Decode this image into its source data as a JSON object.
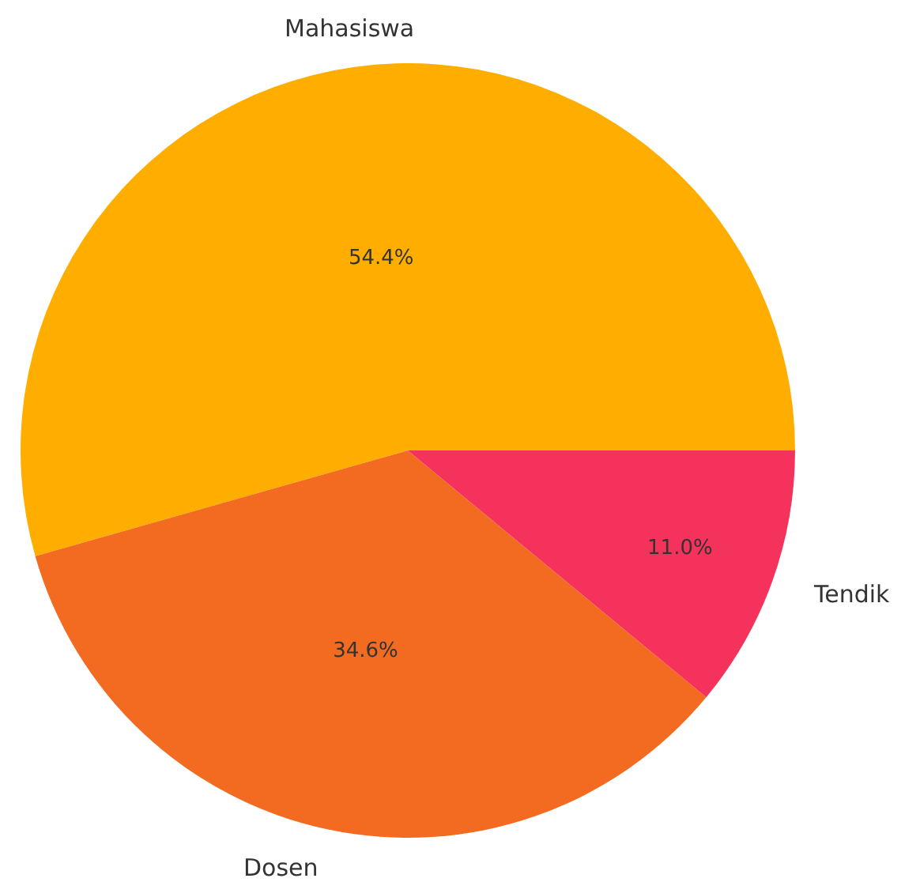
{
  "chart_data": {
    "type": "pie",
    "categories": [
      "Mahasiswa",
      "Dosen",
      "Tendik"
    ],
    "values": [
      54.4,
      34.6,
      11.0
    ],
    "value_labels": [
      "54.4%",
      "34.6%",
      "11.0%"
    ],
    "colors": [
      "#ffae00",
      "#f26b21",
      "#f5325b"
    ]
  }
}
